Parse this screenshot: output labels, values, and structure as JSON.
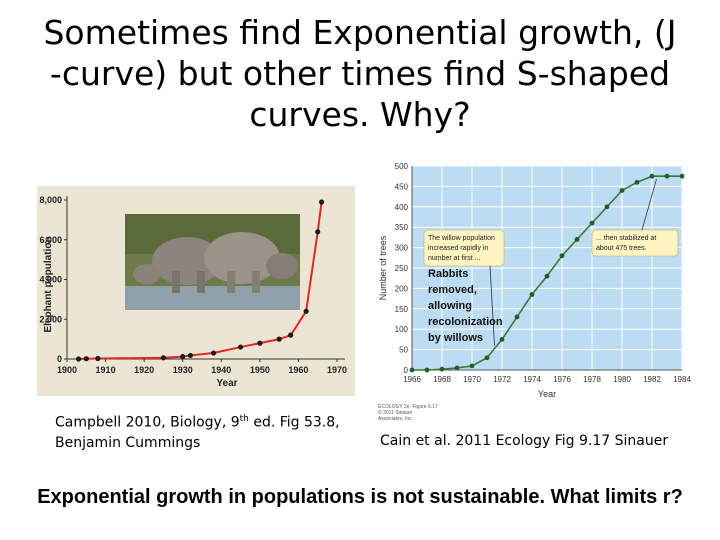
{
  "slide": {
    "title_line1": "Sometimes find Exponential growth, (J",
    "title_line2": "-curve) but other times find S-shaped",
    "title_line3": "curves. Why?",
    "caption_left_1": "Campbell 2010, Biology, 9",
    "caption_left_sup": "th",
    "caption_left_2": " ed. Fig 53.8,",
    "caption_left_3": "Benjamin Cummings",
    "caption_right": "Cain et al. 2011 Ecology Fig 9.17 Sinauer",
    "footer": "Exponential growth in populations is not sustainable.  What limits r?",
    "tiny_credit_1": "ECOLOGY 2e, Figure 9.17",
    "tiny_credit_2": "© 2011 Sinauer Associates, Inc."
  },
  "chart_data": [
    {
      "type": "line",
      "xlabel": "Year",
      "ylabel": "Elephant population",
      "xlim": [
        1900,
        1970
      ],
      "ylim": [
        0,
        8000
      ],
      "xticks": [
        "1900",
        "1910",
        "1920",
        "1930",
        "1940",
        "1950",
        "1960",
        "1970"
      ],
      "yticks": [
        "0",
        "2,000",
        "4,000",
        "6,000",
        "8,000"
      ],
      "x": [
        1903,
        1905,
        1908,
        1925,
        1930,
        1932,
        1938,
        1945,
        1950,
        1955,
        1958,
        1962,
        1965,
        1966
      ],
      "y": [
        0,
        15,
        25,
        60,
        120,
        180,
        300,
        600,
        800,
        1000,
        1200,
        2400,
        6400,
        7900
      ],
      "colors": {
        "line": "#e8261c",
        "marker": "#1a1a1a"
      }
    },
    {
      "type": "line",
      "xlabel": "Year",
      "ylabel": "Number of trees",
      "xlim": [
        1966,
        1984
      ],
      "ylim": [
        0,
        500
      ],
      "xticks": [
        "1966",
        "1968",
        "1970",
        "1972",
        "1974",
        "1976",
        "1978",
        "1980",
        "1982",
        "1984"
      ],
      "yticks": [
        "0",
        "50",
        "100",
        "150",
        "200",
        "250",
        "300",
        "350",
        "400",
        "450",
        "500"
      ],
      "x": [
        1966,
        1967,
        1968,
        1969,
        1970,
        1971,
        1972,
        1973,
        1974,
        1975,
        1976,
        1977,
        1978,
        1979,
        1980,
        1981,
        1982,
        1983,
        1984
      ],
      "y": [
        0,
        0,
        2,
        5,
        10,
        30,
        75,
        130,
        185,
        230,
        280,
        320,
        360,
        400,
        440,
        460,
        475,
        475,
        475
      ],
      "annotations": {
        "callout_left": [
          "The willow population",
          "increased rapidly in",
          "number at first ..."
        ],
        "callout_right": [
          "... then stabilized at",
          "about 475 trees."
        ],
        "note": [
          "Rabbits",
          "removed,",
          "allowing",
          "recolonization",
          "by willows"
        ]
      },
      "colors": {
        "background": "#bcdcf3",
        "grid": "#ffffff",
        "line": "#3a7a3a",
        "marker": "#1f5e24",
        "callout": "#fff4c2"
      }
    }
  ]
}
